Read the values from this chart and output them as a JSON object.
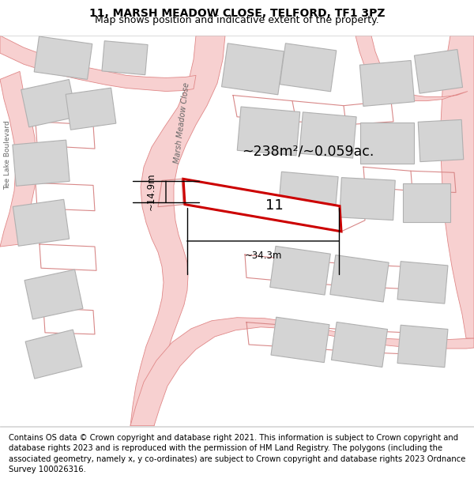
{
  "title": "11, MARSH MEADOW CLOSE, TELFORD, TF1 3PZ",
  "subtitle": "Map shows position and indicative extent of the property.",
  "footer": "Contains OS data © Crown copyright and database right 2021. This information is subject to Crown copyright and database rights 2023 and is reproduced with the permission of HM Land Registry. The polygons (including the associated geometry, namely x, y co-ordinates) are subject to Crown copyright and database rights 2023 Ordnance Survey 100026316.",
  "bg_color": "#eeecea",
  "road_fill": "#f7d0d0",
  "road_edge": "#e08888",
  "building_fill": "#d4d4d4",
  "building_edge": "#b0b0b0",
  "highlight_fill": "#ffffff",
  "highlight_edge": "#cc0000",
  "area_text": "~238m²/~0.059ac.",
  "number_text": "11",
  "dim_width": "~34.3m",
  "dim_height": "~14.9m",
  "road_label": "Marsh Meadow Close",
  "left_label": "Tee Lake Boulevard",
  "title_fontsize": 10,
  "subtitle_fontsize": 9,
  "footer_fontsize": 7.2
}
